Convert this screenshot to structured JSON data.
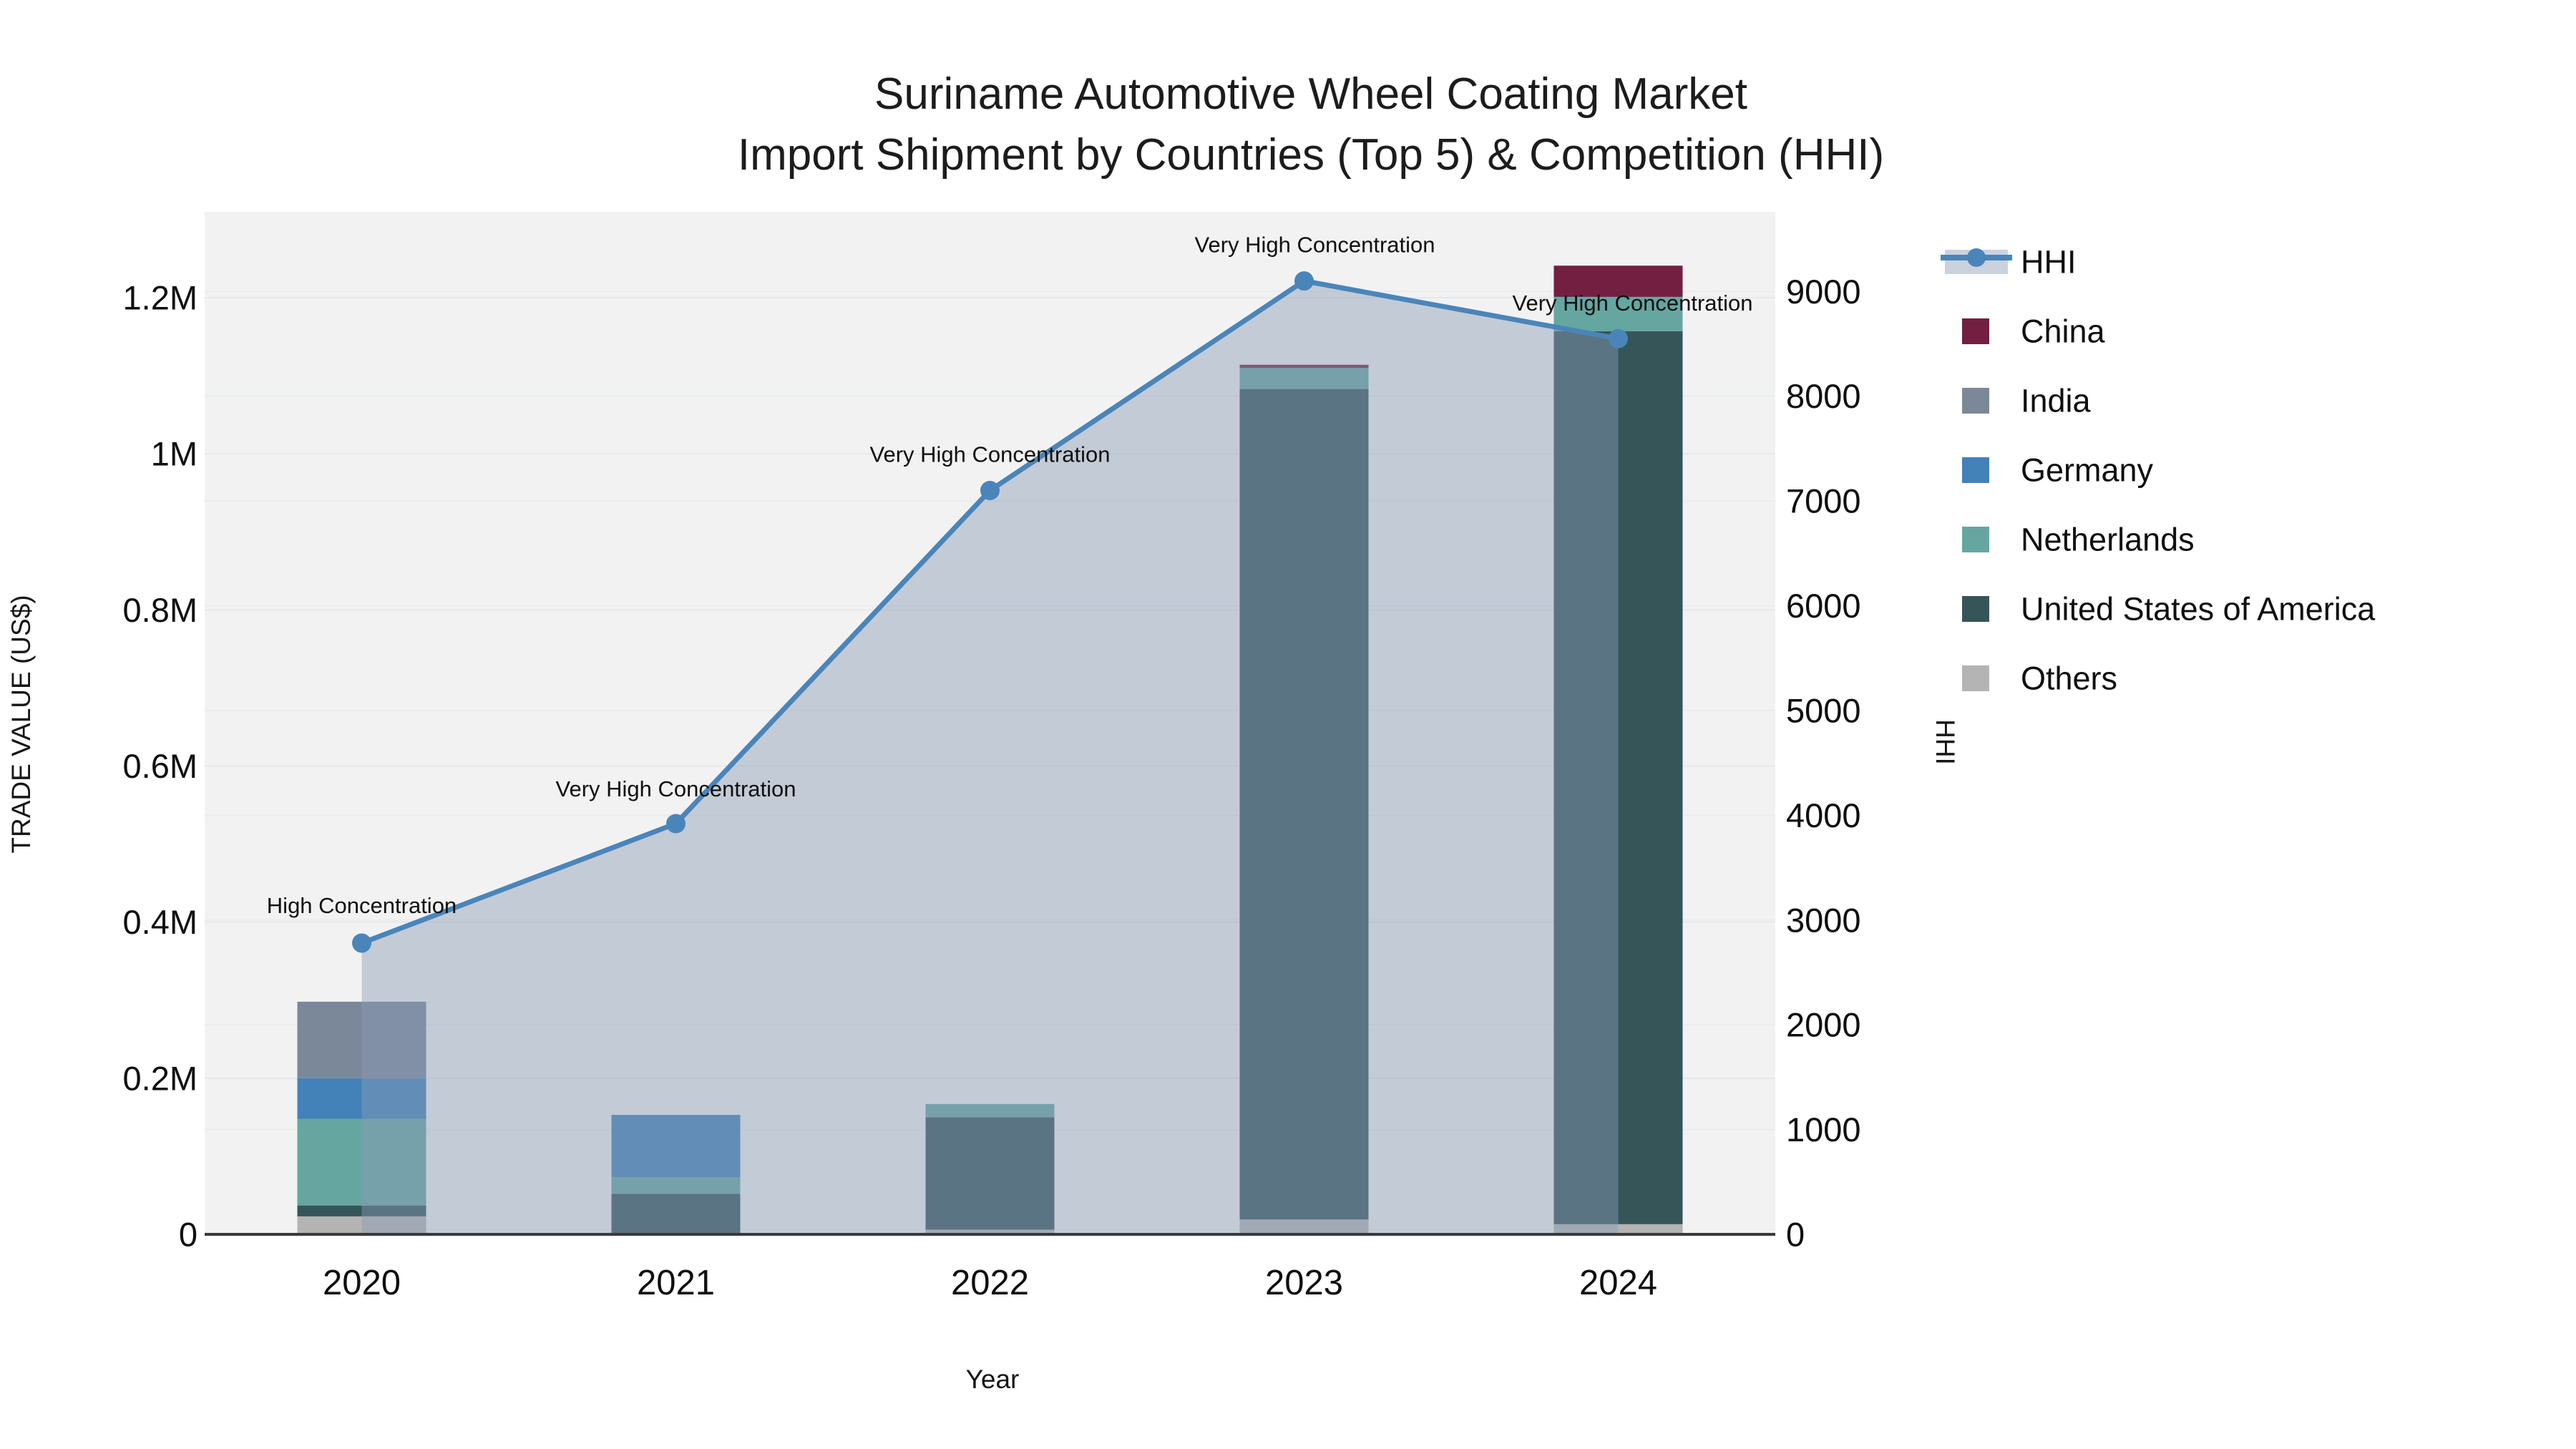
{
  "title": {
    "line1": "Suriname Automotive Wheel Coating Market",
    "line2": "Import Shipment by Countries (Top 5) & Competition (HHI)"
  },
  "chart_data": {
    "type": "combo-stacked-bar-line",
    "categories": [
      "2020",
      "2021",
      "2022",
      "2023",
      "2024"
    ],
    "bar_series": [
      {
        "name": "Others",
        "color": "#b4b4b4",
        "values": [
          23000,
          0,
          6000,
          19000,
          13000
        ]
      },
      {
        "name": "United States of America",
        "color": "#355559",
        "values": [
          14000,
          52000,
          144000,
          1064000,
          1144000
        ]
      },
      {
        "name": "Netherlands",
        "color": "#66a6a1",
        "values": [
          111000,
          21000,
          17000,
          27000,
          44000
        ]
      },
      {
        "name": "Germany",
        "color": "#4381b9",
        "values": [
          52000,
          80000,
          0,
          0,
          0
        ]
      },
      {
        "name": "India",
        "color": "#7b889a",
        "values": [
          98000,
          0,
          0,
          0,
          0
        ]
      },
      {
        "name": "China",
        "color": "#731f42",
        "values": [
          0,
          0,
          0,
          4000,
          40000
        ]
      }
    ],
    "line_series": {
      "name": "HHI",
      "color": "#4a85b9",
      "area_color": "rgba(137,155,181,0.45)",
      "values": [
        2780,
        3920,
        7100,
        9100,
        8550
      ]
    },
    "annotations": [
      {
        "text": "High Concentration"
      },
      {
        "text": "Very High Concentration"
      },
      {
        "text": "Very High Concentration"
      },
      {
        "text": "Very High Concentration"
      },
      {
        "text": "Very High Concentration"
      }
    ],
    "x_axis": {
      "label": "Year"
    },
    "y_left": {
      "label": "TRADE VALUE (US$)",
      "range": [
        0,
        1310000
      ],
      "ticks": [
        {
          "label": "0",
          "value": 0
        },
        {
          "label": "0.2M",
          "value": 200000
        },
        {
          "label": "0.4M",
          "value": 400000
        },
        {
          "label": "0.6M",
          "value": 600000
        },
        {
          "label": "0.8M",
          "value": 800000
        },
        {
          "label": "1M",
          "value": 1000000
        },
        {
          "label": "1.2M",
          "value": 1200000
        }
      ]
    },
    "y_right": {
      "label": "HHI",
      "range": [
        0,
        9760
      ],
      "ticks": [
        {
          "label": "0",
          "value": 0
        },
        {
          "label": "1000",
          "value": 1000
        },
        {
          "label": "2000",
          "value": 2000
        },
        {
          "label": "3000",
          "value": 3000
        },
        {
          "label": "4000",
          "value": 4000
        },
        {
          "label": "5000",
          "value": 5000
        },
        {
          "label": "6000",
          "value": 6000
        },
        {
          "label": "7000",
          "value": 7000
        },
        {
          "label": "8000",
          "value": 8000
        },
        {
          "label": "9000",
          "value": 9000
        }
      ]
    },
    "legend": {
      "position": "right",
      "items": [
        {
          "label": "HHI",
          "series": "HHI"
        },
        {
          "label": "China",
          "series": "China"
        },
        {
          "label": "India",
          "series": "India"
        },
        {
          "label": "Germany",
          "series": "Germany"
        },
        {
          "label": "Netherlands",
          "series": "Netherlands"
        },
        {
          "label": "United States of America",
          "series": "United States of America"
        },
        {
          "label": "Others",
          "series": "Others"
        }
      ]
    }
  },
  "colors": {
    "plot_bg": "#f2f2f3",
    "grid_left": "#e6e8e9",
    "grid_right": "#eaeced",
    "axis_line": "#3a3a3a",
    "text": "#111111"
  }
}
